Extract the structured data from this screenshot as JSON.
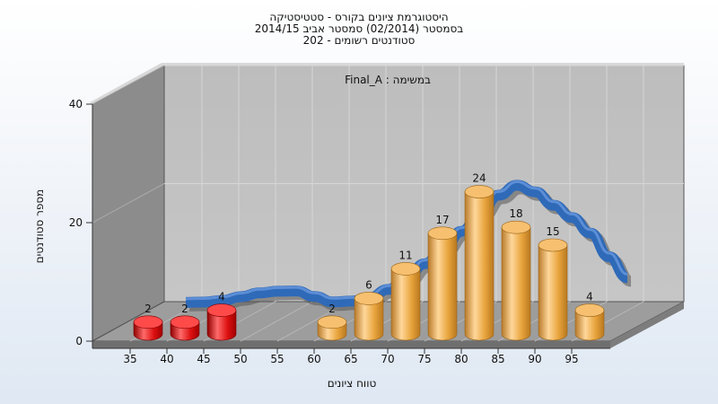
{
  "chart_data": {
    "type": "bar",
    "title_lines": [
      "היסטוגרמת ציונים בקורס - סטטיסטיקה",
      "בסמסטר  (02/2014)  סמסטר אביב 2014/15",
      "סטודנטים רשומים - 202"
    ],
    "annotation": "במשימה : Final_A",
    "ylabel": "מספר סטודנטים",
    "xlabel": "טווח ציונים",
    "ylim": [
      0,
      40
    ],
    "yticks": [
      0,
      20,
      40
    ],
    "xticks": [
      35,
      40,
      45,
      50,
      55,
      60,
      65,
      70,
      75,
      80,
      85,
      90,
      95
    ],
    "categories": [
      35,
      40,
      45,
      60,
      65,
      70,
      75,
      80,
      85,
      90,
      95
    ],
    "values": [
      2,
      2,
      4,
      2,
      6,
      11,
      17,
      24,
      18,
      15,
      4
    ],
    "failing_threshold": 55,
    "colors": {
      "failing": "#dd1111",
      "passing": "#e8a43c",
      "curve": "#2f6ab8",
      "curve_shadow": "#555555",
      "wall": "#b8b8b8",
      "side_wall": "#8a8a8a",
      "floor": "#9c9c9c"
    }
  }
}
